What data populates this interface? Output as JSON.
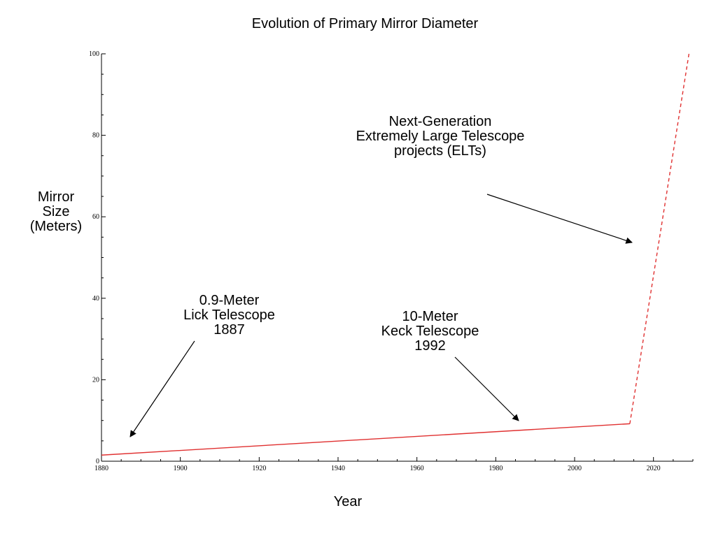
{
  "chart_data": {
    "type": "line",
    "title": "Evolution of Primary Mirror Diameter",
    "xlabel": "Year",
    "ylabel": [
      "Mirror",
      "Size",
      "(Meters)"
    ],
    "xlim": [
      1880,
      2030
    ],
    "ylim": [
      0,
      100
    ],
    "xticks": [
      1880,
      1900,
      1920,
      1940,
      1960,
      1980,
      2000,
      2020
    ],
    "yticks": [
      0,
      20,
      40,
      60,
      80,
      100
    ],
    "grid": false,
    "colors": {
      "line": "#e03030",
      "axis": "#000000"
    },
    "series": [
      {
        "style": "solid",
        "points": [
          [
            1880,
            1.5
          ],
          [
            2014,
            9.2
          ]
        ]
      },
      {
        "style": "dashed",
        "points": [
          [
            2014,
            9.2
          ],
          [
            2029,
            100
          ]
        ]
      }
    ],
    "annotations": [
      {
        "lines": [
          "Next-Generation",
          "Extremely Large Telescope",
          "projects (ELTs)"
        ]
      },
      {
        "lines": [
          "0.9-Meter",
          "Lick Telescope",
          "1887"
        ]
      },
      {
        "lines": [
          "10-Meter",
          "Keck Telescope",
          "1992"
        ]
      }
    ]
  }
}
